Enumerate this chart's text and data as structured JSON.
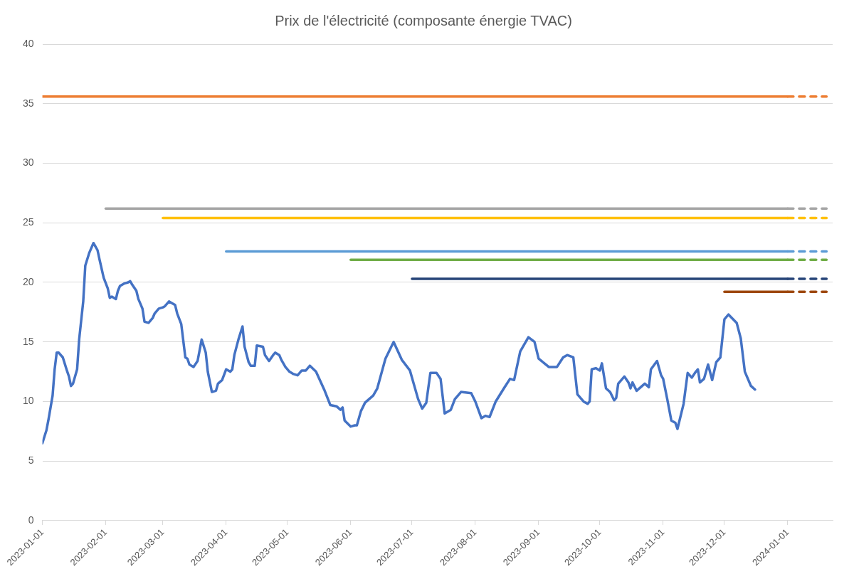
{
  "chart_data": {
    "type": "line",
    "title": "Prix de l'électricité (composante énergie TVAC)",
    "xlim": [
      "2023-01-01",
      "2024-01-23"
    ],
    "xticks": [
      "2023-01-01",
      "2023-02-01",
      "2023-03-01",
      "2023-04-01",
      "2023-05-01",
      "2023-06-01",
      "2023-07-01",
      "2023-08-01",
      "2023-09-01",
      "2023-10-01",
      "2023-11-01",
      "2023-12-01",
      "2024-01-01"
    ],
    "ylim": [
      0,
      40
    ],
    "yticks": [
      0,
      5,
      10,
      15,
      20,
      25,
      30,
      35,
      40
    ],
    "grid": "y",
    "legend": false,
    "marker": "none",
    "line_style": "solid",
    "series": [
      {
        "color": "#4472c4",
        "x": [
          "2023-01-01",
          "2023-01-03",
          "2023-01-04",
          "2023-01-06",
          "2023-01-07",
          "2023-01-08",
          "2023-01-09",
          "2023-01-11",
          "2023-01-13",
          "2023-01-14",
          "2023-01-15",
          "2023-01-16",
          "2023-01-18",
          "2023-01-19",
          "2023-01-21",
          "2023-01-22",
          "2023-01-24",
          "2023-01-26",
          "2023-01-27",
          "2023-01-28",
          "2023-01-29",
          "2023-01-31",
          "2023-02-02",
          "2023-02-03",
          "2023-02-04",
          "2023-02-06",
          "2023-02-07",
          "2023-02-08",
          "2023-02-10",
          "2023-02-12",
          "2023-02-13",
          "2023-02-14",
          "2023-02-16",
          "2023-02-17",
          "2023-02-19",
          "2023-02-20",
          "2023-02-22",
          "2023-02-24",
          "2023-02-25",
          "2023-02-27",
          "2023-03-01",
          "2023-03-02",
          "2023-03-04",
          "2023-03-05",
          "2023-03-07",
          "2023-03-08",
          "2023-03-10",
          "2023-03-12",
          "2023-03-13",
          "2023-03-14",
          "2023-03-16",
          "2023-03-18",
          "2023-03-20",
          "2023-03-22",
          "2023-03-23",
          "2023-03-25",
          "2023-03-27",
          "2023-03-28",
          "2023-03-30",
          "2023-04-01",
          "2023-04-03",
          "2023-04-04",
          "2023-04-05",
          "2023-04-07",
          "2023-04-09",
          "2023-04-10",
          "2023-04-12",
          "2023-04-13",
          "2023-04-15",
          "2023-04-16",
          "2023-04-19",
          "2023-04-20",
          "2023-04-22",
          "2023-04-24",
          "2023-04-25",
          "2023-04-27",
          "2023-04-28",
          "2023-04-30",
          "2023-05-02",
          "2023-05-04",
          "2023-05-06",
          "2023-05-08",
          "2023-05-10",
          "2023-05-12",
          "2023-05-15",
          "2023-05-19",
          "2023-05-22",
          "2023-05-25",
          "2023-05-27",
          "2023-05-28",
          "2023-05-29",
          "2023-06-01",
          "2023-06-03",
          "2023-06-04",
          "2023-06-06",
          "2023-06-08",
          "2023-06-12",
          "2023-06-14",
          "2023-06-18",
          "2023-06-22",
          "2023-06-26",
          "2023-06-30",
          "2023-07-04",
          "2023-07-06",
          "2023-07-08",
          "2023-07-10",
          "2023-07-13",
          "2023-07-15",
          "2023-07-17",
          "2023-07-20",
          "2023-07-22",
          "2023-07-25",
          "2023-07-30",
          "2023-08-01",
          "2023-08-04",
          "2023-08-06",
          "2023-08-08",
          "2023-08-11",
          "2023-08-15",
          "2023-08-18",
          "2023-08-20",
          "2023-08-23",
          "2023-08-27",
          "2023-08-30",
          "2023-09-01",
          "2023-09-06",
          "2023-09-10",
          "2023-09-13",
          "2023-09-15",
          "2023-09-18",
          "2023-09-20",
          "2023-09-23",
          "2023-09-25",
          "2023-09-26",
          "2023-09-27",
          "2023-09-29",
          "2023-10-01",
          "2023-10-02",
          "2023-10-04",
          "2023-10-06",
          "2023-10-08",
          "2023-10-09",
          "2023-10-10",
          "2023-10-13",
          "2023-10-15",
          "2023-10-16",
          "2023-10-17",
          "2023-10-19",
          "2023-10-23",
          "2023-10-25",
          "2023-10-26",
          "2023-10-29",
          "2023-10-31",
          "2023-11-01",
          "2023-11-03",
          "2023-11-05",
          "2023-11-07",
          "2023-11-08",
          "2023-11-11",
          "2023-11-13",
          "2023-11-15",
          "2023-11-17",
          "2023-11-18",
          "2023-11-19",
          "2023-11-21",
          "2023-11-23",
          "2023-11-25",
          "2023-11-27",
          "2023-11-29",
          "2023-12-01",
          "2023-12-03",
          "2023-12-07",
          "2023-12-09",
          "2023-12-11",
          "2023-12-14",
          "2023-12-16"
        ],
        "values": [
          6.5,
          7.6,
          8.5,
          10.5,
          12.7,
          14.1,
          14.1,
          13.7,
          12.6,
          12.1,
          11.3,
          11.5,
          12.7,
          15.2,
          18.4,
          21.4,
          22.5,
          23.3,
          23.0,
          22.7,
          21.9,
          20.4,
          19.5,
          18.7,
          18.8,
          18.6,
          19.3,
          19.7,
          19.9,
          20.0,
          20.1,
          19.8,
          19.3,
          18.6,
          17.8,
          16.7,
          16.6,
          17.0,
          17.4,
          17.8,
          17.9,
          18.0,
          18.4,
          18.3,
          18.1,
          17.4,
          16.5,
          13.7,
          13.6,
          13.1,
          12.9,
          13.4,
          15.2,
          14.1,
          12.5,
          10.8,
          10.9,
          11.5,
          11.8,
          12.7,
          12.5,
          12.7,
          13.9,
          15.2,
          16.3,
          14.6,
          13.3,
          13.0,
          13.0,
          14.7,
          14.6,
          13.9,
          13.4,
          13.9,
          14.1,
          13.9,
          13.5,
          12.9,
          12.5,
          12.3,
          12.2,
          12.6,
          12.6,
          13.0,
          12.5,
          11.0,
          9.7,
          9.6,
          9.3,
          9.5,
          8.4,
          7.9,
          8.0,
          8.0,
          9.2,
          9.9,
          10.5,
          11.1,
          13.6,
          15.0,
          13.5,
          12.6,
          10.2,
          9.4,
          9.9,
          12.4,
          12.4,
          11.9,
          9.0,
          9.3,
          10.2,
          10.8,
          10.7,
          10.0,
          8.6,
          8.8,
          8.7,
          10.0,
          11.1,
          11.9,
          11.8,
          14.2,
          15.4,
          15.0,
          13.6,
          12.9,
          12.9,
          13.7,
          13.9,
          13.7,
          10.6,
          10.0,
          9.8,
          10.0,
          12.7,
          12.8,
          12.6,
          13.2,
          11.1,
          10.8,
          10.1,
          10.3,
          11.5,
          12.1,
          11.6,
          11.1,
          11.6,
          10.9,
          11.5,
          11.2,
          12.7,
          13.4,
          12.2,
          11.9,
          10.2,
          8.4,
          8.2,
          7.7,
          9.8,
          12.4,
          12.0,
          12.5,
          12.7,
          11.6,
          11.9,
          13.1,
          11.8,
          13.3,
          13.7,
          16.9,
          17.3,
          16.6,
          15.3,
          12.5,
          11.3,
          11.0
        ]
      },
      {
        "color": "#ed7d31",
        "x": [
          "2023-01-01",
          "2024-01-01"
        ],
        "values": [
          35.6,
          35.6
        ]
      },
      {
        "color": "#ed7d31",
        "x": [
          "2024-01-01",
          "2024-01-20"
        ],
        "values": [
          35.6,
          35.6
        ],
        "line_style": "dashed"
      },
      {
        "color": "#a5a5a5",
        "x": [
          "2023-02-01",
          "2024-01-01"
        ],
        "values": [
          26.2,
          26.2
        ]
      },
      {
        "color": "#a5a5a5",
        "x": [
          "2024-01-01",
          "2024-01-20"
        ],
        "values": [
          26.2,
          26.2
        ],
        "line_style": "dashed"
      },
      {
        "color": "#ffc000",
        "x": [
          "2023-03-01",
          "2024-01-01"
        ],
        "values": [
          25.4,
          25.4
        ]
      },
      {
        "color": "#ffc000",
        "x": [
          "2024-01-01",
          "2024-01-20"
        ],
        "values": [
          25.4,
          25.4
        ],
        "line_style": "dashed"
      },
      {
        "color": "#5b9bd5",
        "x": [
          "2023-04-01",
          "2024-01-01"
        ],
        "values": [
          22.6,
          22.6
        ]
      },
      {
        "color": "#5b9bd5",
        "x": [
          "2024-01-01",
          "2024-01-20"
        ],
        "values": [
          22.6,
          22.6
        ],
        "line_style": "dashed"
      },
      {
        "color": "#70ad47",
        "x": [
          "2023-06-01",
          "2024-01-01"
        ],
        "values": [
          21.9,
          21.9
        ]
      },
      {
        "color": "#70ad47",
        "x": [
          "2024-01-01",
          "2024-01-20"
        ],
        "values": [
          21.9,
          21.9
        ],
        "line_style": "dashed"
      },
      {
        "color": "#264478",
        "x": [
          "2023-07-01",
          "2024-01-01"
        ],
        "values": [
          20.3,
          20.3
        ]
      },
      {
        "color": "#264478",
        "x": [
          "2024-01-01",
          "2024-01-20"
        ],
        "values": [
          20.3,
          20.3
        ],
        "line_style": "dashed"
      },
      {
        "color": "#9e480e",
        "x": [
          "2023-12-01",
          "2024-01-01"
        ],
        "values": [
          19.2,
          19.2
        ]
      },
      {
        "color": "#9e480e",
        "x": [
          "2024-01-01",
          "2024-01-20"
        ],
        "values": [
          19.2,
          19.2
        ],
        "line_style": "dashed"
      }
    ]
  }
}
